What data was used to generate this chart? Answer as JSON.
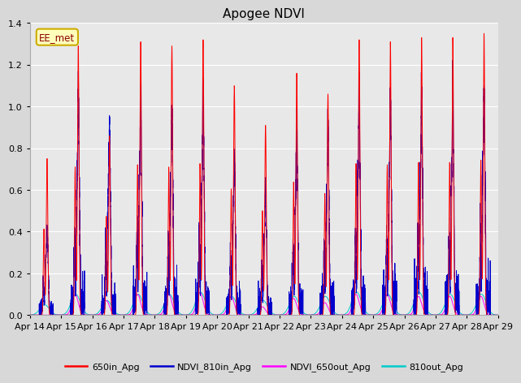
{
  "title": "Apogee NDVI",
  "annotation": "EE_met",
  "ylim": [
    0,
    1.4
  ],
  "num_days": 15,
  "tick_labels": [
    "Apr 14",
    "Apr 15",
    "Apr 16",
    "Apr 17",
    "Apr 18",
    "Apr 19",
    "Apr 20",
    "Apr 21",
    "Apr 22",
    "Apr 23",
    "Apr 24",
    "Apr 25",
    "Apr 26",
    "Apr 27",
    "Apr 28",
    "Apr 29"
  ],
  "background_color": "#d8d8d8",
  "plot_bg_color": "#e8e8e8",
  "legend_labels": [
    "650in_Apg",
    "NDVI_810in_Apg",
    "NDVI_650out_Apg",
    "810out_Apg"
  ],
  "legend_colors": [
    "#ff0000",
    "#0000cc",
    "#ff00ff",
    "#00cccc"
  ],
  "red_peak_heights": [
    0.75,
    1.29,
    0.86,
    1.31,
    1.29,
    1.32,
    1.1,
    0.91,
    1.16,
    1.06,
    1.32,
    1.31,
    1.33,
    1.33,
    1.35
  ],
  "blue_peak_heights": [
    0.4,
    0.95,
    0.86,
    0.99,
    0.92,
    0.97,
    0.7,
    0.55,
    0.8,
    0.8,
    0.97,
    0.97,
    0.99,
    0.99,
    1.0
  ],
  "cyan_peak_heights": [
    0.05,
    0.1,
    0.07,
    0.1,
    0.1,
    0.11,
    0.09,
    0.07,
    0.09,
    0.09,
    0.11,
    0.1,
    0.11,
    0.1,
    0.1
  ],
  "mag_peak_heights": [
    0.0,
    0.1,
    0.07,
    0.1,
    0.1,
    0.11,
    0.09,
    0.04,
    0.08,
    0.06,
    0.1,
    0.1,
    0.09,
    0.09,
    0.09
  ],
  "yticks": [
    0.0,
    0.2,
    0.4,
    0.6,
    0.8,
    1.0,
    1.2,
    1.4
  ]
}
